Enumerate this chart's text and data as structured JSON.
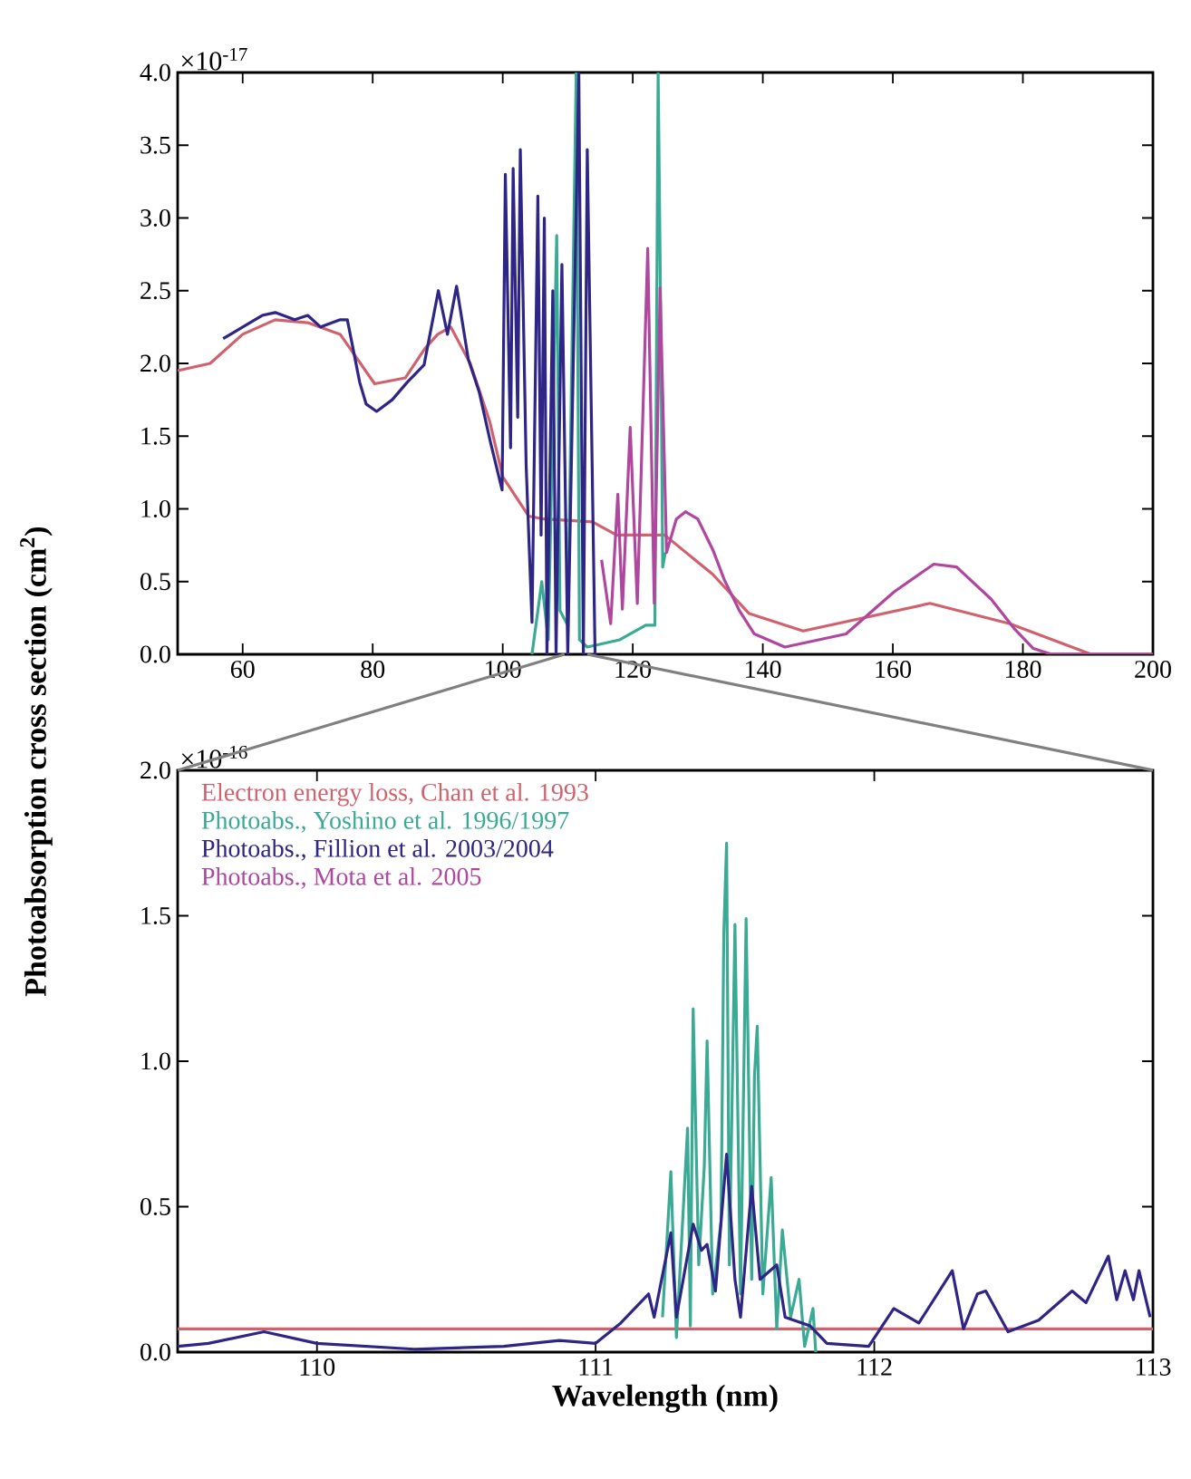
{
  "chart_data": [
    {
      "type": "line",
      "ylabel": "Photoabsorption cross section (cm$^{2}$)",
      "annotations": [
        "×10$^{-17}$"
      ],
      "xlim": [
        50,
        200
      ],
      "ylim": [
        0,
        4.0
      ],
      "xticks": [
        60,
        80,
        100,
        120,
        140,
        160,
        180,
        200
      ],
      "yticks": [
        {
          "value": 0,
          "label": "0.0"
        },
        {
          "value": 0.5,
          "label": "0.5"
        },
        {
          "value": 1,
          "label": "1.0"
        },
        {
          "value": 1.5,
          "label": "1.5"
        },
        {
          "value": 2,
          "label": "2.0"
        },
        {
          "value": 2.5,
          "label": "2.5"
        },
        {
          "value": 3,
          "label": "3.0"
        },
        {
          "value": 3.5,
          "label": "3.5"
        },
        {
          "value": 4,
          "label": "4.0"
        }
      ],
      "grid": false,
      "marker": "none",
      "line_style": "solid",
      "series": [
        {
          "color": "#d0626e",
          "x": [
            50,
            55,
            60,
            65,
            70,
            75,
            80.3,
            85,
            88,
            90,
            92,
            95,
            98,
            100,
            104,
            106.3,
            113.8,
            117.5,
            124.9,
            132.3,
            137.9,
            146.2,
            165.7,
            178,
            190.5,
            200
          ],
          "values": [
            1.95,
            2.0,
            2.2,
            2.3,
            2.28,
            2.2,
            1.86,
            1.9,
            2.1,
            2.2,
            2.25,
            2.0,
            1.6,
            1.22,
            0.95,
            0.93,
            0.91,
            0.82,
            0.82,
            0.55,
            0.28,
            0.16,
            0.35,
            0.21,
            0,
            0
          ]
        },
        {
          "color": "#3aaa94",
          "x": [
            104.5,
            106,
            107,
            108.3,
            108.8,
            110,
            111.3,
            111.8,
            113,
            118,
            122,
            123.4,
            123.9,
            124.3,
            124.6,
            125
          ],
          "values": [
            0.0,
            0.5,
            0.1,
            2.88,
            0.3,
            0.2,
            4.0,
            0.1,
            0.05,
            0.1,
            0.2,
            0.2,
            4.0,
            2.3,
            0.6,
            0.7
          ]
        },
        {
          "color": "#2e2586",
          "x": [
            57,
            60,
            63,
            65,
            68,
            70,
            72,
            75,
            76.1,
            78,
            79,
            80.6,
            83,
            85.3,
            87.9,
            90.1,
            91.5,
            92.9,
            94.7,
            96.4,
            98.1,
            99.9,
            100.4,
            101.2,
            101.6,
            102.3,
            102.7,
            103.6,
            104.5,
            105.4,
            105.9,
            106.4,
            106.8,
            107.7,
            108.2,
            109.1,
            110.0,
            111.7,
            112.4,
            113,
            114.2
          ],
          "values": [
            2.17,
            2.25,
            2.33,
            2.35,
            2.3,
            2.33,
            2.25,
            2.3,
            2.3,
            1.87,
            1.72,
            1.67,
            1.75,
            1.87,
            1.99,
            2.5,
            2.2,
            2.53,
            2.03,
            1.8,
            1.46,
            1.13,
            3.3,
            1.42,
            3.34,
            1.63,
            3.47,
            1.3,
            0.22,
            3.15,
            0.82,
            3.0,
            0,
            2.5,
            0,
            2.68,
            0,
            4.0,
            0,
            3.47,
            0
          ]
        },
        {
          "color": "#b0479f",
          "x": [
            115.2,
            116.6,
            117.7,
            118.4,
            119.6,
            120.7,
            122.3,
            123.3,
            124.2,
            125.2,
            126.7,
            128.1,
            130,
            132.3,
            134.1,
            136.4,
            138.7,
            143.4,
            152.8,
            160.2,
            166.3,
            169.8,
            175.1,
            178.8,
            181.6,
            184.4,
            200
          ],
          "values": [
            0.65,
            0.21,
            1.1,
            0.31,
            1.56,
            0.35,
            2.79,
            0.35,
            2.52,
            0.7,
            0.93,
            0.98,
            0.93,
            0.72,
            0.51,
            0.3,
            0.14,
            0.05,
            0.14,
            0.43,
            0.62,
            0.6,
            0.38,
            0.17,
            0.04,
            0,
            0
          ]
        }
      ]
    },
    {
      "type": "line",
      "xlabel": "Wavelength (nm)",
      "annotations": [
        "×10$^{-16}$"
      ],
      "xlim": [
        109.5,
        113
      ],
      "ylim": [
        0,
        2.0
      ],
      "xticks": [
        110,
        111,
        112,
        113
      ],
      "yticks": [
        {
          "value": 0,
          "label": "0.0"
        },
        {
          "value": 0.5,
          "label": "0.5"
        },
        {
          "value": 1,
          "label": "1.0"
        },
        {
          "value": 1.5,
          "label": "1.5"
        },
        {
          "value": 2,
          "label": "2.0"
        }
      ],
      "grid": false,
      "marker": "none",
      "line_style": "solid",
      "legend": "top left",
      "series": [
        {
          "name": "Electron energy loss, Chan et al. 1993",
          "color": "#d0626e",
          "x": [
            109.5,
            113
          ],
          "values": [
            0.08,
            0.08
          ]
        },
        {
          "name": "Photoabs., Yoshino et al. 1996/1997",
          "color": "#3aaa94",
          "x": [
            111.24,
            111.27,
            111.29,
            111.33,
            111.34,
            111.35,
            111.37,
            111.39,
            111.4,
            111.42,
            111.45,
            111.46,
            111.47,
            111.48,
            111.5,
            111.52,
            111.54,
            111.56,
            111.57,
            111.58,
            111.6,
            111.63,
            111.65,
            111.67,
            111.7,
            111.73,
            111.75,
            111.78,
            111.79
          ],
          "values": [
            0.12,
            0.62,
            0.05,
            0.77,
            0.09,
            1.18,
            0.3,
            0.64,
            1.07,
            0.2,
            0.45,
            1.44,
            1.75,
            0.3,
            1.47,
            0.2,
            1.49,
            0.25,
            0.95,
            1.12,
            0.2,
            0.6,
            0.08,
            0.42,
            0.12,
            0.25,
            0.02,
            0.15,
            0.0
          ]
        },
        {
          "name": "Photoabs., Fillion et al. 2003/2004",
          "color": "#2e2586",
          "x": [
            109.5,
            109.61,
            109.81,
            110.0,
            110.35,
            110.67,
            110.87,
            111.0,
            111.09,
            111.19,
            111.21,
            111.27,
            111.29,
            111.35,
            111.38,
            111.4,
            111.43,
            111.47,
            111.5,
            111.52,
            111.56,
            111.59,
            111.65,
            111.68,
            111.77,
            111.83,
            111.98,
            112.07,
            112.16,
            112.28,
            112.32,
            112.37,
            112.4,
            112.48,
            112.59,
            112.71,
            112.76,
            112.84,
            112.87,
            112.9,
            112.93,
            112.95,
            112.99
          ],
          "values": [
            0.02,
            0.03,
            0.07,
            0.03,
            0.01,
            0.02,
            0.04,
            0.03,
            0.1,
            0.2,
            0.12,
            0.41,
            0.12,
            0.44,
            0.35,
            0.37,
            0.21,
            0.68,
            0.25,
            0.12,
            0.57,
            0.25,
            0.3,
            0.12,
            0.09,
            0.03,
            0.02,
            0.15,
            0.1,
            0.28,
            0.08,
            0.2,
            0.21,
            0.07,
            0.11,
            0.21,
            0.17,
            0.33,
            0.18,
            0.28,
            0.18,
            0.28,
            0.12
          ]
        },
        {
          "name": "Photoabs., Mota et al. 2005",
          "color": "#b0479f"
        }
      ]
    }
  ]
}
